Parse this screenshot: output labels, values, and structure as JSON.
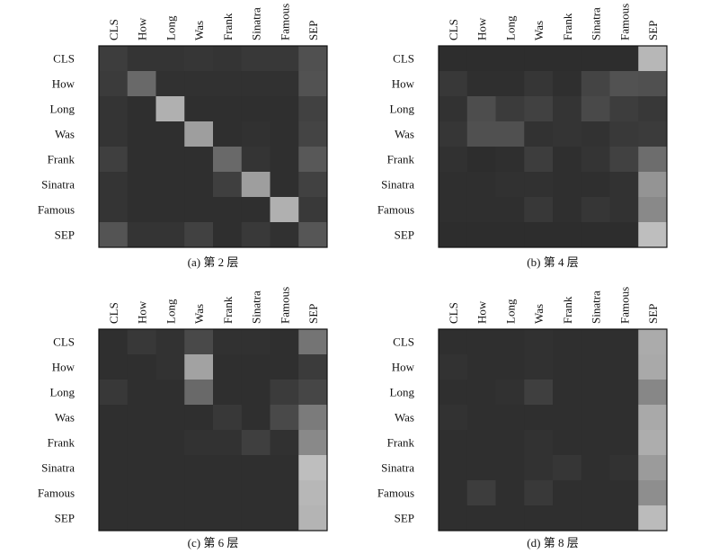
{
  "tokens": [
    "CLS",
    "How",
    "Long",
    "Was",
    "Frank",
    "Sinatra",
    "Famous",
    "SEP"
  ],
  "chart_data": [
    {
      "type": "heatmap",
      "title": "(a) 第 2 层",
      "x_labels": [
        "CLS",
        "How",
        "Long",
        "Was",
        "Frank",
        "Sinatra",
        "Famous",
        "SEP"
      ],
      "y_labels": [
        "CLS",
        "How",
        "Long",
        "Was",
        "Frank",
        "Sinatra",
        "Famous",
        "SEP"
      ],
      "value_range": [
        0,
        1
      ],
      "matrix": [
        [
          0.13,
          0.08,
          0.08,
          0.09,
          0.08,
          0.1,
          0.1,
          0.24
        ],
        [
          0.12,
          0.38,
          0.06,
          0.06,
          0.06,
          0.06,
          0.06,
          0.25
        ],
        [
          0.08,
          0.05,
          0.78,
          0.05,
          0.05,
          0.05,
          0.05,
          0.15
        ],
        [
          0.08,
          0.05,
          0.05,
          0.68,
          0.05,
          0.06,
          0.05,
          0.17
        ],
        [
          0.14,
          0.05,
          0.05,
          0.05,
          0.38,
          0.08,
          0.05,
          0.28
        ],
        [
          0.08,
          0.05,
          0.05,
          0.05,
          0.14,
          0.68,
          0.05,
          0.15
        ],
        [
          0.08,
          0.05,
          0.05,
          0.05,
          0.05,
          0.05,
          0.78,
          0.11
        ],
        [
          0.26,
          0.08,
          0.08,
          0.15,
          0.05,
          0.11,
          0.06,
          0.27
        ]
      ]
    },
    {
      "type": "heatmap",
      "title": "(b) 第 4 层",
      "x_labels": [
        "CLS",
        "How",
        "Long",
        "Was",
        "Frank",
        "Sinatra",
        "Famous",
        "SEP"
      ],
      "y_labels": [
        "CLS",
        "How",
        "Long",
        "Was",
        "Frank",
        "Sinatra",
        "Famous",
        "SEP"
      ],
      "value_range": [
        0,
        1
      ],
      "matrix": [
        [
          0.04,
          0.04,
          0.04,
          0.04,
          0.04,
          0.04,
          0.04,
          0.82
        ],
        [
          0.1,
          0.05,
          0.05,
          0.09,
          0.05,
          0.17,
          0.25,
          0.24
        ],
        [
          0.07,
          0.22,
          0.12,
          0.15,
          0.08,
          0.2,
          0.13,
          0.1
        ],
        [
          0.09,
          0.24,
          0.24,
          0.07,
          0.08,
          0.07,
          0.11,
          0.12
        ],
        [
          0.06,
          0.04,
          0.05,
          0.13,
          0.05,
          0.08,
          0.15,
          0.4
        ],
        [
          0.05,
          0.05,
          0.06,
          0.06,
          0.05,
          0.05,
          0.07,
          0.62
        ],
        [
          0.05,
          0.05,
          0.05,
          0.1,
          0.05,
          0.09,
          0.07,
          0.56
        ],
        [
          0.04,
          0.04,
          0.04,
          0.04,
          0.04,
          0.04,
          0.04,
          0.86
        ]
      ]
    },
    {
      "type": "heatmap",
      "title": "(c) 第 6 层",
      "x_labels": [
        "CLS",
        "How",
        "Long",
        "Was",
        "Frank",
        "Sinatra",
        "Famous",
        "SEP"
      ],
      "y_labels": [
        "CLS",
        "How",
        "Long",
        "Was",
        "Frank",
        "Sinatra",
        "Famous",
        "SEP"
      ],
      "value_range": [
        0,
        1
      ],
      "matrix": [
        [
          0.05,
          0.1,
          0.07,
          0.2,
          0.06,
          0.06,
          0.05,
          0.44
        ],
        [
          0.05,
          0.05,
          0.07,
          0.7,
          0.05,
          0.05,
          0.05,
          0.12
        ],
        [
          0.1,
          0.05,
          0.05,
          0.38,
          0.05,
          0.05,
          0.12,
          0.18
        ],
        [
          0.05,
          0.05,
          0.05,
          0.05,
          0.1,
          0.05,
          0.2,
          0.48
        ],
        [
          0.05,
          0.05,
          0.05,
          0.07,
          0.07,
          0.14,
          0.06,
          0.56
        ],
        [
          0.05,
          0.05,
          0.05,
          0.05,
          0.05,
          0.05,
          0.05,
          0.86
        ],
        [
          0.05,
          0.05,
          0.05,
          0.05,
          0.05,
          0.05,
          0.05,
          0.82
        ],
        [
          0.05,
          0.05,
          0.05,
          0.05,
          0.05,
          0.05,
          0.05,
          0.8
        ]
      ]
    },
    {
      "type": "heatmap",
      "title": "(d) 第 8 层",
      "x_labels": [
        "CLS",
        "How",
        "Long",
        "Was",
        "Frank",
        "Sinatra",
        "Famous",
        "SEP"
      ],
      "y_labels": [
        "CLS",
        "How",
        "Long",
        "Was",
        "Frank",
        "Sinatra",
        "Famous",
        "SEP"
      ],
      "value_range": [
        0,
        1
      ],
      "matrix": [
        [
          0.05,
          0.05,
          0.05,
          0.06,
          0.05,
          0.05,
          0.05,
          0.75
        ],
        [
          0.07,
          0.05,
          0.05,
          0.06,
          0.05,
          0.05,
          0.05,
          0.74
        ],
        [
          0.05,
          0.05,
          0.06,
          0.14,
          0.05,
          0.05,
          0.05,
          0.55
        ],
        [
          0.07,
          0.05,
          0.05,
          0.05,
          0.05,
          0.05,
          0.05,
          0.74
        ],
        [
          0.05,
          0.05,
          0.05,
          0.07,
          0.05,
          0.05,
          0.05,
          0.76
        ],
        [
          0.05,
          0.05,
          0.05,
          0.07,
          0.09,
          0.05,
          0.07,
          0.66
        ],
        [
          0.05,
          0.13,
          0.05,
          0.11,
          0.05,
          0.05,
          0.05,
          0.59
        ],
        [
          0.05,
          0.05,
          0.05,
          0.05,
          0.05,
          0.05,
          0.05,
          0.84
        ]
      ]
    }
  ]
}
